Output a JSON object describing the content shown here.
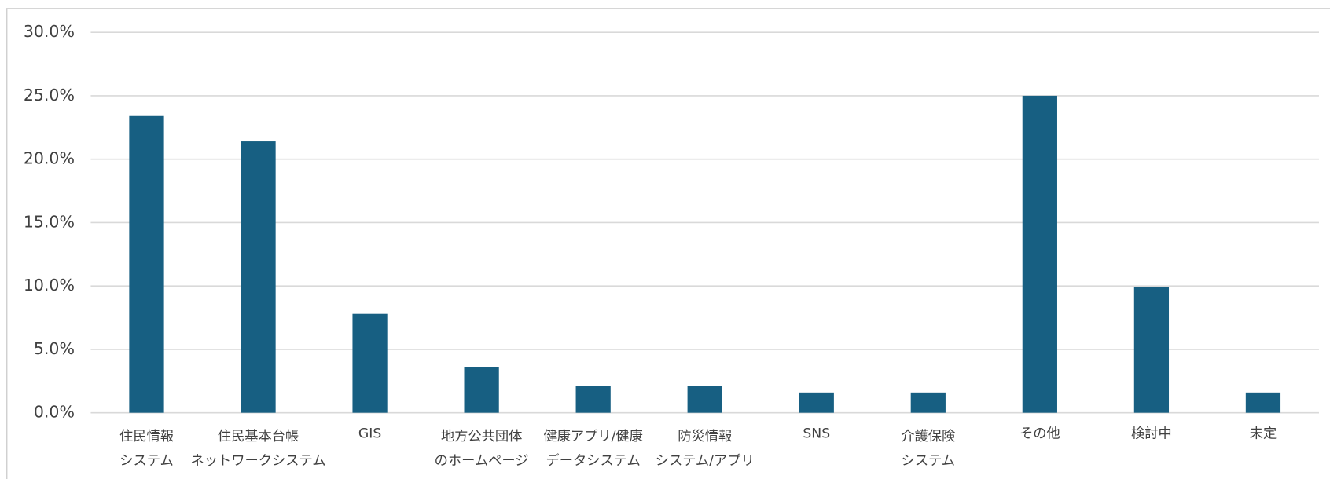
{
  "chart_data": {
    "type": "bar",
    "categories": [
      [
        "住民情報",
        "システム"
      ],
      [
        "住民基本台帳",
        "ネットワークシステム"
      ],
      [
        "GIS"
      ],
      [
        "地方公共団体",
        "のホームページ"
      ],
      [
        "健康アプリ/健康",
        "データシステム"
      ],
      [
        "防災情報",
        "システム/アプリ"
      ],
      [
        "SNS"
      ],
      [
        "介護保険",
        "システム"
      ],
      [
        "その他"
      ],
      [
        "検討中"
      ],
      [
        "未定"
      ]
    ],
    "values": [
      23.4,
      21.4,
      7.8,
      3.6,
      2.1,
      2.1,
      1.6,
      1.6,
      25.0,
      9.9,
      1.6
    ],
    "color": "#175f82",
    "ylim": [
      0,
      30
    ],
    "yticks": [
      {
        "value": 0,
        "label": "0.0%"
      },
      {
        "value": 5,
        "label": "5.0%"
      },
      {
        "value": 10,
        "label": "10.0%"
      },
      {
        "value": 15,
        "label": "15.0%"
      },
      {
        "value": 20,
        "label": "20.0%"
      },
      {
        "value": 25,
        "label": "25.0%"
      },
      {
        "value": 30,
        "label": "30.0%"
      }
    ],
    "grid": true
  }
}
